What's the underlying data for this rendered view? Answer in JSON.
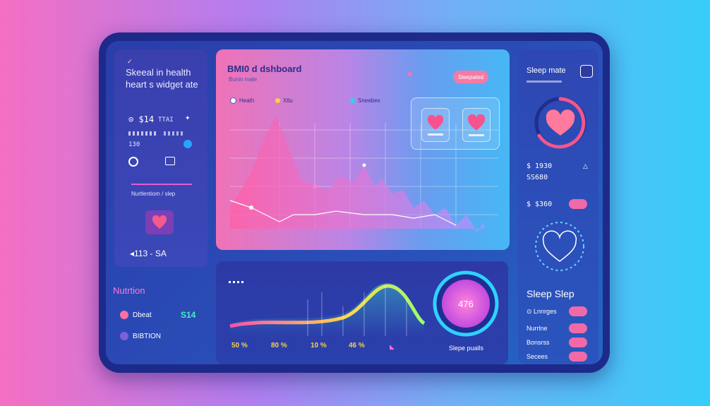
{
  "left": {
    "title_line1": "Skeeal in health",
    "title_line2": "heart s widget ate",
    "stat1_value": "$14",
    "stat1_aux": "TTAI",
    "stat2_value": "130",
    "section_label": "Nurtlentiom / slep",
    "bottom_value": "113 - SA"
  },
  "dashboard": {
    "title": "BMI0 d dshboard",
    "subtitle": "Bunin male",
    "button_label": "Sleepated",
    "legend": [
      "Heath",
      "Xtlu",
      "Sneebes"
    ]
  },
  "right": {
    "title": "Sleep mate",
    "value1": "$ 1930",
    "value2": "SS680",
    "value3": "$ $360",
    "section_title": "Sleep Slep",
    "rows": [
      "Lnnrges",
      "Nurrlne",
      "Bonsrss",
      "Secees"
    ]
  },
  "nutrition": {
    "title": "Nutrtion",
    "row1_label": "Dbeat",
    "row1_value": "S14",
    "row2_label": "BIBTION"
  },
  "bottom_chart": {
    "values": [
      "50 %",
      "80 %",
      "10 %",
      "46 %"
    ],
    "gauge_label": "Slepe pualls",
    "gauge_value": "476"
  },
  "colors": {
    "accent_pink": "#f06aa8",
    "accent_blue": "#36cdf8",
    "panel_navy": "#1d2a8a"
  }
}
